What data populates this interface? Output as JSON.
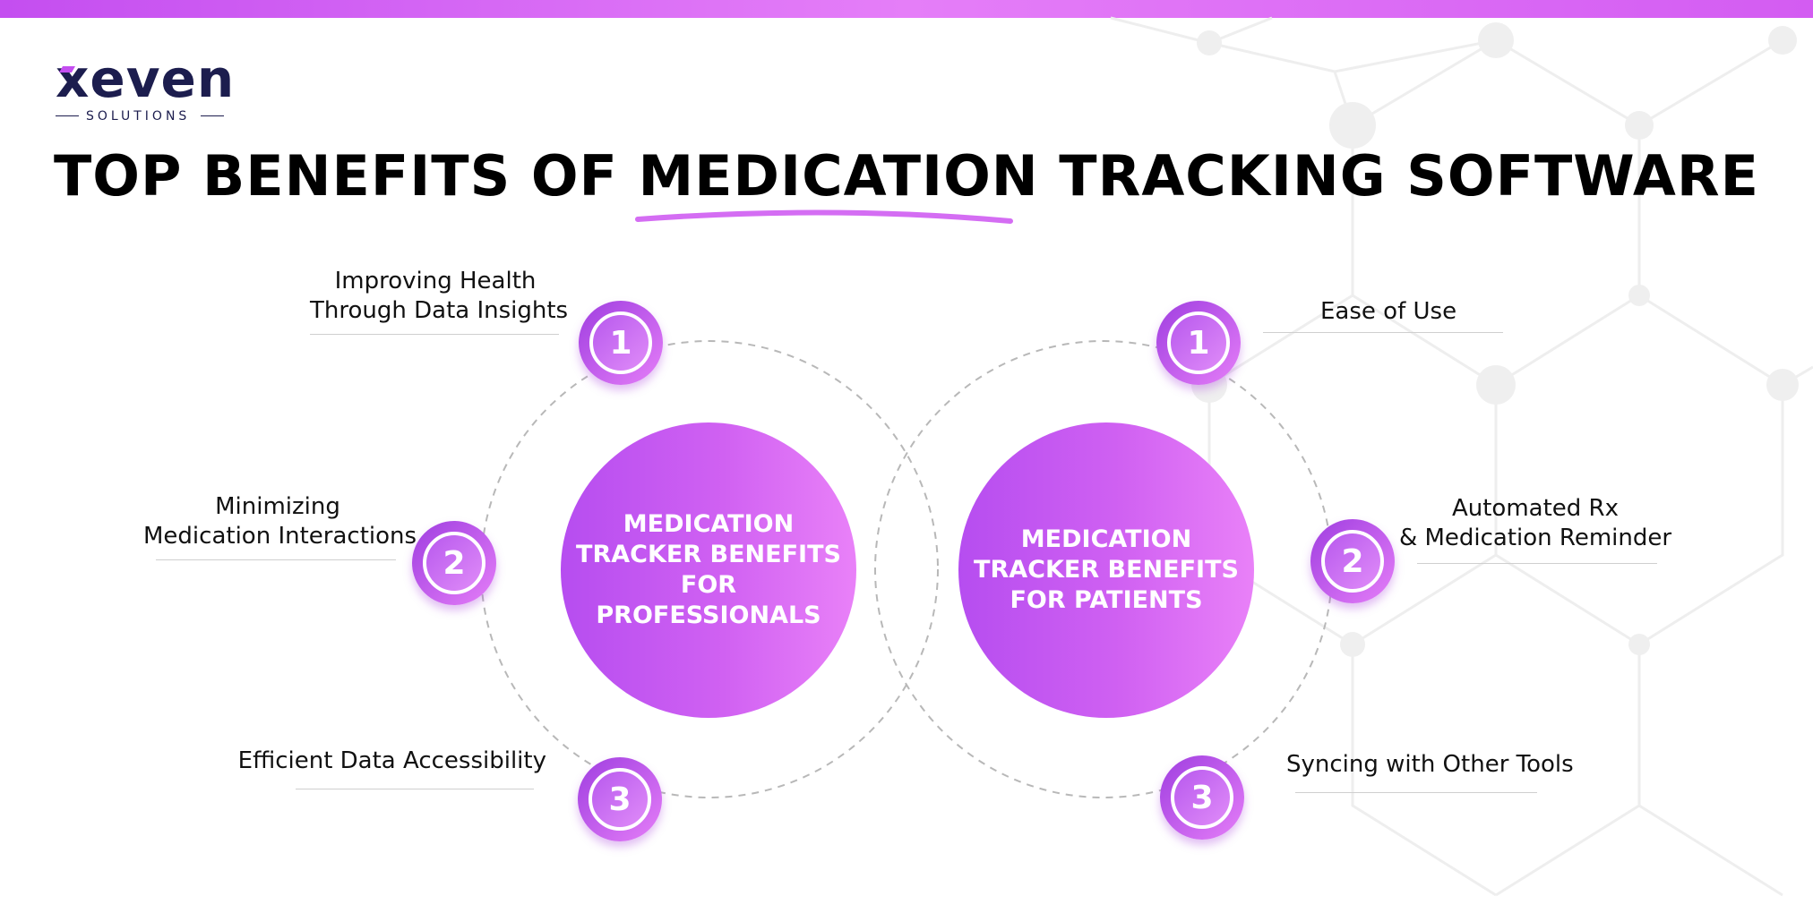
{
  "brand": {
    "name": "xeven",
    "tagline": "SOLUTIONS",
    "accent_color": "#c44ef0",
    "text_color": "#1c1d4e"
  },
  "title": {
    "before": "TOP BENEFITS OF ",
    "highlight": "MEDICATION",
    "after": " TRACKING SOFTWARE"
  },
  "professionals": {
    "hub_lines": [
      "MEDICATION",
      "TRACKER BENEFITS",
      "FOR PROFESSIONALS"
    ],
    "items": [
      {
        "number": "1",
        "lines": [
          "Improving Health",
          "Through Data Insights"
        ]
      },
      {
        "number": "2",
        "lines": [
          "Minimizing",
          "Medication Interactions"
        ]
      },
      {
        "number": "3",
        "lines": [
          "Efficient Data Accessibility"
        ]
      }
    ]
  },
  "patients": {
    "hub_lines": [
      "MEDICATION",
      "TRACKER BENEFITS",
      "FOR PATIENTS"
    ],
    "items": [
      {
        "number": "1",
        "lines": [
          "Ease of Use"
        ]
      },
      {
        "number": "2",
        "lines": [
          "Automated Rx",
          "& Medication Reminder"
        ]
      },
      {
        "number": "3",
        "lines": [
          "Syncing with Other Tools"
        ]
      }
    ]
  },
  "colors": {
    "hub_gradient": [
      "#b64df0",
      "#e981f8"
    ],
    "badge_gradient": [
      "#9f3ee0",
      "#e57ef8"
    ]
  }
}
